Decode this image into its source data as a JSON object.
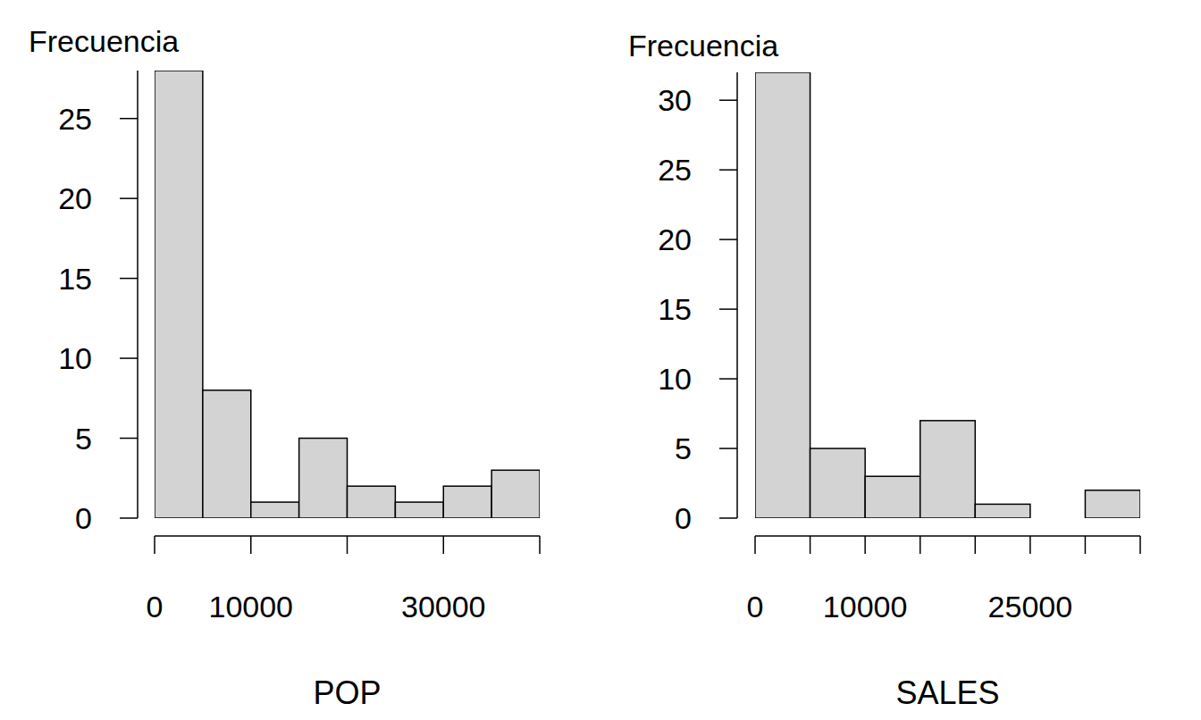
{
  "chart_data": [
    {
      "type": "histogram",
      "x_label": "POP",
      "y_label": "Frecuencia",
      "bins": [
        0,
        5000,
        10000,
        15000,
        20000,
        25000,
        30000,
        35000,
        40000
      ],
      "values": [
        28,
        8,
        1,
        5,
        2,
        1,
        2,
        3
      ],
      "color": "#d3d3d3",
      "xlim": [
        0,
        40000
      ],
      "xticks": [
        0,
        10000,
        {
          "value": 20000,
          "label": null
        },
        30000,
        {
          "value": 40000,
          "label": null
        }
      ],
      "ylim": [
        0,
        28
      ],
      "yticks": [
        0,
        5,
        10,
        15,
        20,
        25
      ]
    },
    {
      "type": "histogram",
      "x_label": "SALES",
      "y_label": "Frecuencia",
      "bins": [
        0,
        5000,
        10000,
        15000,
        20000,
        25000,
        30000,
        35000
      ],
      "values": [
        32,
        5,
        3,
        7,
        1,
        0,
        2
      ],
      "color": "#d3d3d3",
      "xlim": [
        0,
        35000
      ],
      "xticks": [
        0,
        {
          "value": 5000,
          "label": null
        },
        10000,
        {
          "value": 15000,
          "label": null
        },
        {
          "value": 20000,
          "label": null
        },
        25000,
        {
          "value": 30000,
          "label": null
        },
        {
          "value": 35000,
          "label": null
        }
      ],
      "ylim": [
        0,
        32
      ],
      "yticks": [
        0,
        5,
        10,
        15,
        20,
        25,
        30
      ]
    }
  ]
}
